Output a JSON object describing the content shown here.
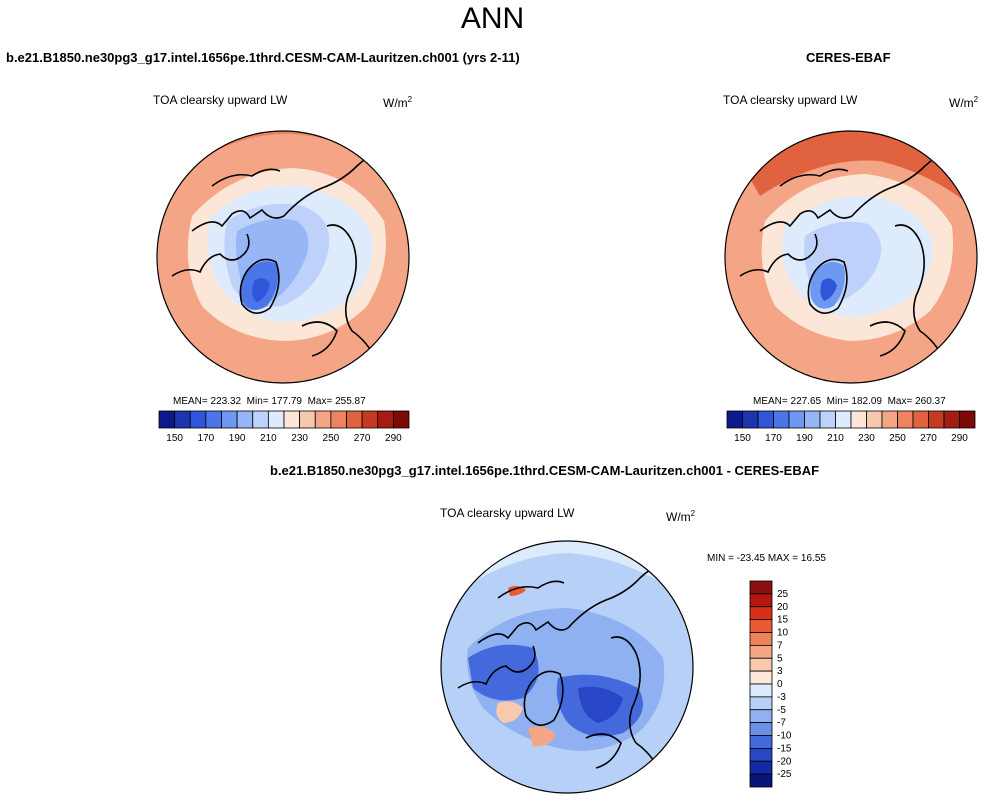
{
  "page": {
    "title": "ANN",
    "colors": {
      "deep_blue": "#1f3fbf",
      "mid_blue": "#5f86ea",
      "light_blue": "#c7dcf7",
      "cream": "#fbe0cf",
      "salmon": "#f4a282",
      "orange_red": "#e2693f",
      "dark_red": "#8b0f0f",
      "land_outline": "#000000"
    }
  },
  "chart_data": [
    {
      "id": "model",
      "type": "heatmap",
      "title": "b.e21.B1850.ne30pg3_g17.intel.1656pe.1thrd.CESM-CAM-Lauritzen.ch001 (yrs 2-11)",
      "variable": "TOA clearsky upward LW",
      "units_base": "W/m",
      "units_exp": "2",
      "projection": "north polar stereographic",
      "mean_text": "MEAN= 223.32",
      "min_text": "Min= 177.79",
      "max_text": "Max= 255.87",
      "mean": 223.32,
      "min": 177.79,
      "max": 255.87,
      "colorbar": {
        "orientation": "horizontal",
        "levels": [
          150,
          160,
          170,
          180,
          190,
          200,
          210,
          220,
          230,
          240,
          250,
          260,
          270,
          280,
          290
        ],
        "tick_labels": [
          "150",
          "170",
          "190",
          "210",
          "230",
          "250",
          "270",
          "290"
        ],
        "colors": [
          "#0b1a8a",
          "#1c34b0",
          "#2f55d8",
          "#4a76ea",
          "#6e98f2",
          "#96b6f6",
          "#bdd1fa",
          "#deebfc",
          "#fbe6d7",
          "#f8c8ae",
          "#f4a585",
          "#ee8360",
          "#e0623f",
          "#c63a22",
          "#a51d12",
          "#7c0a08"
        ]
      }
    },
    {
      "id": "obs",
      "type": "heatmap",
      "title": "CERES-EBAF",
      "variable": "TOA clearsky upward LW",
      "units_base": "W/m",
      "units_exp": "2",
      "projection": "north polar stereographic",
      "mean_text": "MEAN= 227.65",
      "min_text": "Min= 182.09",
      "max_text": "Max= 260.37",
      "mean": 227.65,
      "min": 182.09,
      "max": 260.37,
      "colorbar": {
        "orientation": "horizontal",
        "levels": [
          150,
          160,
          170,
          180,
          190,
          200,
          210,
          220,
          230,
          240,
          250,
          260,
          270,
          280,
          290
        ],
        "tick_labels": [
          "150",
          "170",
          "190",
          "210",
          "230",
          "250",
          "270",
          "290"
        ],
        "colors": [
          "#0b1a8a",
          "#1c34b0",
          "#2f55d8",
          "#4a76ea",
          "#6e98f2",
          "#96b6f6",
          "#bdd1fa",
          "#deebfc",
          "#fbe6d7",
          "#f8c8ae",
          "#f4a585",
          "#ee8360",
          "#e0623f",
          "#c63a22",
          "#a51d12",
          "#7c0a08"
        ]
      }
    },
    {
      "id": "diff",
      "type": "heatmap",
      "title": "b.e21.B1850.ne30pg3_g17.intel.1656pe.1thrd.CESM-CAM-Lauritzen.ch001 - CERES-EBAF",
      "variable": "TOA clearsky upward LW",
      "units_base": "W/m",
      "units_exp": "2",
      "projection": "north polar stereographic",
      "minmax_text": "MIN = -23.45 MAX =  16.55",
      "min": -23.45,
      "max": 16.55,
      "colorbar": {
        "orientation": "vertical",
        "tick_labels": [
          "25",
          "20",
          "15",
          "10",
          "7",
          "5",
          "3",
          "0",
          "-3",
          "-5",
          "-7",
          "-10",
          "-15",
          "-20",
          "-25"
        ],
        "colors": [
          "#8b0f0f",
          "#b3170f",
          "#d6301a",
          "#ea5a36",
          "#f08358",
          "#f5a684",
          "#f9c8ad",
          "#fde9da",
          "#dcebfb",
          "#b7d0f7",
          "#8fb1f1",
          "#6a90ea",
          "#4469dd",
          "#2846c5",
          "#1429a5",
          "#0a1578"
        ]
      }
    }
  ]
}
